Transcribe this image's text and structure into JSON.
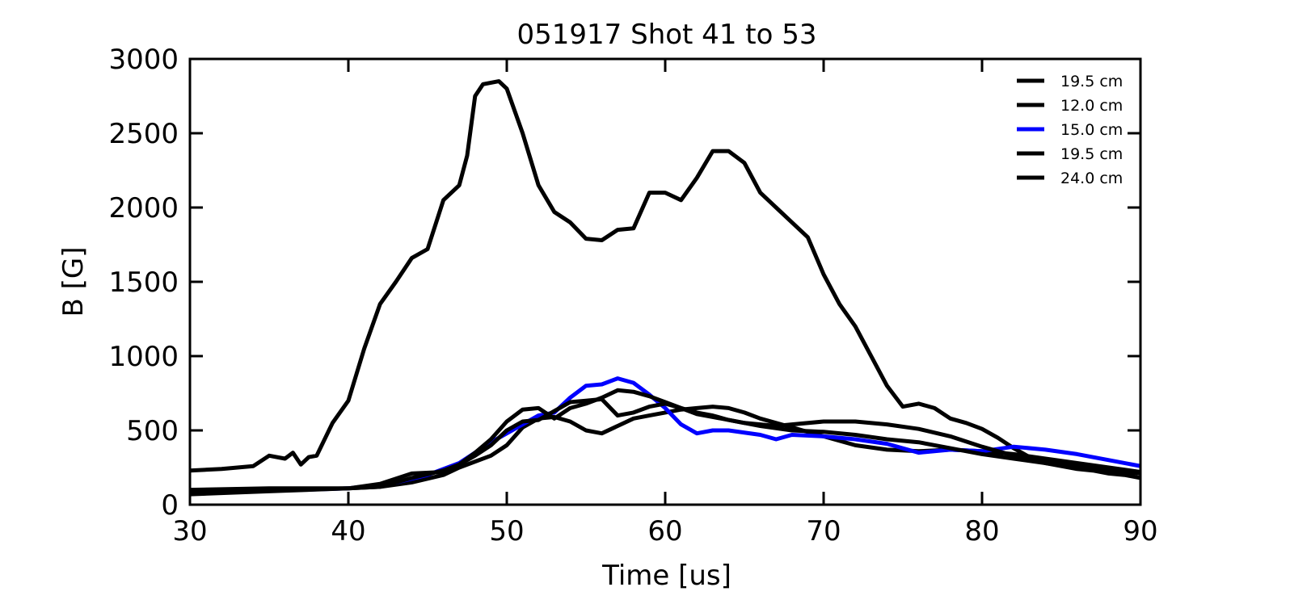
{
  "chart_data": {
    "type": "line",
    "title": "051917 Shot 41 to 53",
    "xlabel": "Time [us]",
    "ylabel": "B [G]",
    "xlim": [
      30,
      90
    ],
    "ylim": [
      0,
      3000
    ],
    "xticks": [
      "30",
      "40",
      "50",
      "60",
      "70",
      "80",
      "90"
    ],
    "yticks": [
      "0",
      "500",
      "1000",
      "1500",
      "2000",
      "2500",
      "3000"
    ],
    "grid": false,
    "legend_position": "top-right",
    "series": [
      {
        "name": "19.5 cm",
        "color": "#000000",
        "x": [
          30,
          32,
          34,
          35,
          36,
          36.5,
          37,
          37.5,
          38,
          39,
          40,
          41,
          42,
          43,
          44,
          45,
          46,
          47,
          47.5,
          48,
          48.5,
          49,
          49.5,
          50,
          51,
          52,
          53,
          54,
          55,
          56,
          57,
          58,
          59,
          60,
          61,
          62,
          63,
          64,
          65,
          66,
          67,
          68,
          69,
          70,
          71,
          72,
          73,
          74,
          75,
          76,
          77,
          78,
          79,
          80,
          81,
          82,
          83,
          84,
          85,
          86,
          87,
          88,
          89,
          90
        ],
        "y": [
          230,
          240,
          260,
          330,
          310,
          350,
          270,
          320,
          330,
          550,
          700,
          1050,
          1350,
          1500,
          1660,
          1720,
          2050,
          2150,
          2350,
          2750,
          2830,
          2840,
          2850,
          2800,
          2500,
          2150,
          1970,
          1900,
          1790,
          1780,
          1850,
          1860,
          2100,
          2100,
          2050,
          2200,
          2380,
          2380,
          2300,
          2100,
          2000,
          1900,
          1800,
          1550,
          1350,
          1200,
          1000,
          800,
          660,
          680,
          650,
          580,
          550,
          510,
          450,
          380,
          320,
          280,
          260,
          240,
          230,
          210,
          200,
          180
        ]
      },
      {
        "name": "12.0 cm",
        "color": "#000000",
        "x": [
          30,
          35,
          40,
          42,
          44,
          46,
          47,
          48,
          49,
          50,
          51,
          52,
          53,
          54,
          55,
          56,
          57,
          58,
          59,
          60,
          61,
          62,
          63,
          64,
          65,
          66,
          68,
          70,
          72,
          74,
          76,
          78,
          80,
          82,
          84,
          86,
          88,
          90
        ],
        "y": [
          90,
          100,
          110,
          120,
          150,
          200,
          250,
          290,
          330,
          400,
          520,
          580,
          590,
          560,
          500,
          480,
          530,
          580,
          600,
          620,
          640,
          650,
          660,
          650,
          620,
          580,
          520,
          460,
          400,
          370,
          360,
          370,
          360,
          340,
          310,
          280,
          250,
          220
        ]
      },
      {
        "name": "15.0 cm",
        "color": "#0000ff",
        "x": [
          37,
          40,
          43,
          45,
          47,
          48,
          49,
          50,
          51,
          52,
          53,
          54,
          55,
          56,
          57,
          58,
          59,
          60,
          61,
          62,
          63,
          64,
          66,
          67,
          68,
          70,
          72,
          74,
          76,
          78,
          80,
          82,
          84,
          86,
          88,
          90
        ],
        "y": [
          100,
          110,
          150,
          200,
          280,
          350,
          420,
          480,
          540,
          600,
          620,
          720,
          800,
          810,
          850,
          820,
          740,
          650,
          540,
          480,
          500,
          500,
          470,
          440,
          470,
          460,
          440,
          410,
          350,
          370,
          360,
          390,
          370,
          340,
          300,
          260
        ]
      },
      {
        "name": "19.5 cm",
        "color": "#000000",
        "x": [
          30,
          35,
          40,
          42,
          44,
          46,
          47,
          48,
          49,
          50,
          51,
          52,
          53,
          54,
          55,
          56,
          57,
          58,
          59,
          60,
          61,
          62,
          63,
          64,
          66,
          68,
          70,
          72,
          74,
          76,
          78,
          80,
          82,
          84,
          86,
          88,
          90
        ],
        "y": [
          100,
          110,
          110,
          140,
          210,
          220,
          270,
          350,
          440,
          560,
          640,
          650,
          580,
          650,
          680,
          720,
          770,
          760,
          730,
          690,
          650,
          610,
          590,
          570,
          530,
          500,
          490,
          470,
          440,
          420,
          380,
          340,
          310,
          280,
          250,
          230,
          210
        ]
      },
      {
        "name": "24.0 cm",
        "color": "#000000",
        "x": [
          30,
          35,
          40,
          42,
          44,
          46,
          47,
          48,
          49,
          50,
          51,
          52,
          53,
          54,
          55,
          56,
          57,
          58,
          59,
          60,
          61,
          62,
          63,
          64,
          65,
          66,
          67,
          68,
          70,
          72,
          74,
          76,
          78,
          80,
          82,
          84,
          86,
          88,
          90
        ],
        "y": [
          70,
          90,
          110,
          120,
          180,
          230,
          270,
          330,
          400,
          500,
          560,
          570,
          630,
          690,
          700,
          710,
          600,
          620,
          660,
          680,
          650,
          620,
          600,
          570,
          550,
          540,
          530,
          540,
          560,
          560,
          540,
          510,
          460,
          390,
          330,
          290,
          260,
          240,
          210
        ]
      }
    ]
  }
}
